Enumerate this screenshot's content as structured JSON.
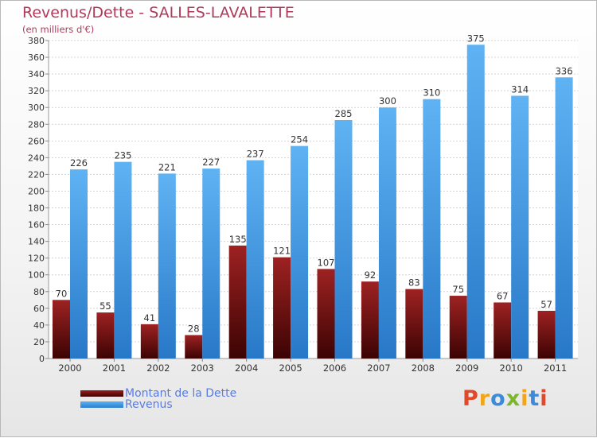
{
  "chart_data": {
    "type": "bar",
    "title": "Revenus/Dette - SALLES-LAVALETTE",
    "subtitle": "(en milliers d'€)",
    "categories": [
      "2000",
      "2001",
      "2002",
      "2003",
      "2004",
      "2005",
      "2006",
      "2007",
      "2008",
      "2009",
      "2010",
      "2011"
    ],
    "series": [
      {
        "name": "Montant de la Dette",
        "color": "#7a0e0e",
        "values": [
          70,
          55,
          41,
          28,
          135,
          121,
          107,
          92,
          83,
          75,
          67,
          57
        ]
      },
      {
        "name": "Revenus",
        "color": "#3f9be8",
        "values": [
          226,
          235,
          221,
          227,
          237,
          254,
          285,
          300,
          310,
          375,
          314,
          336
        ]
      }
    ],
    "yticks": [
      0,
      20,
      40,
      60,
      80,
      100,
      120,
      140,
      160,
      180,
      200,
      220,
      240,
      260,
      280,
      300,
      320,
      340,
      360,
      380
    ],
    "ylim": [
      0,
      380
    ],
    "grid": true,
    "legend_position": "bottom-left"
  },
  "branding": {
    "logo_text": "Proxiti",
    "logo_colors": [
      "#e04a2a",
      "#f2a51a",
      "#3c8ad8",
      "#7ab72b",
      "#f2a51a",
      "#3c8ad8",
      "#e04a2a"
    ]
  }
}
